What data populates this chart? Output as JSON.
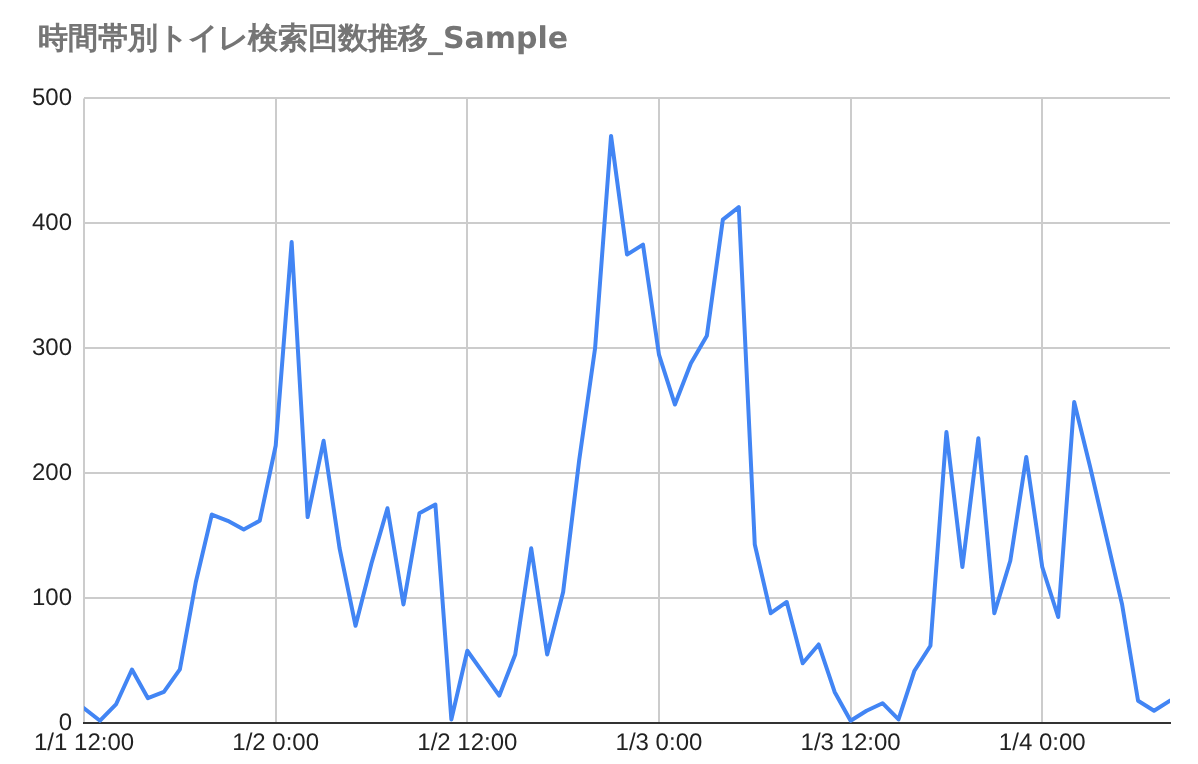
{
  "chart_data": {
    "type": "line",
    "title": "時間帯別トイレ検索回数推移_Sample",
    "x": [
      "--01-01T12:00",
      "--01-01T13:00",
      "--01-01T14:00",
      "--01-01T15:00",
      "--01-01T16:00",
      "--01-01T17:00",
      "--01-01T18:00",
      "--01-01T19:00",
      "--01-01T20:00",
      "--01-01T21:00",
      "--01-01T22:00",
      "--01-01T23:00",
      "--01-02T00:00",
      "--01-02T01:00",
      "--01-02T02:00",
      "--01-02T03:00",
      "--01-02T04:00",
      "--01-02T05:00",
      "--01-02T06:00",
      "--01-02T07:00",
      "--01-02T08:00",
      "--01-02T09:00",
      "--01-02T10:00",
      "--01-02T11:00",
      "--01-02T12:00",
      "--01-02T13:00",
      "--01-02T14:00",
      "--01-02T15:00",
      "--01-02T16:00",
      "--01-02T17:00",
      "--01-02T18:00",
      "--01-02T19:00",
      "--01-02T20:00",
      "--01-02T21:00",
      "--01-02T22:00",
      "--01-02T23:00",
      "--01-03T00:00",
      "--01-03T01:00",
      "--01-03T02:00",
      "--01-03T03:00",
      "--01-03T04:00",
      "--01-03T05:00",
      "--01-03T06:00",
      "--01-03T07:00",
      "--01-03T08:00",
      "--01-03T09:00",
      "--01-03T10:00",
      "--01-03T11:00",
      "--01-03T12:00",
      "--01-03T13:00",
      "--01-03T14:00",
      "--01-03T15:00",
      "--01-03T16:00",
      "--01-03T17:00",
      "--01-03T18:00",
      "--01-03T19:00",
      "--01-03T20:00",
      "--01-03T21:00",
      "--01-03T22:00",
      "--01-03T23:00",
      "--01-04T00:00",
      "--01-04T01:00",
      "--01-04T02:00",
      "--01-04T03:00",
      "--01-04T04:00",
      "--01-04T05:00",
      "--01-04T06:00",
      "--01-04T07:00",
      "--01-04T08:00"
    ],
    "series": [
      {
        "color": "#4285f4",
        "values": [
          12,
          2,
          15,
          43,
          20,
          25,
          43,
          113,
          167,
          162,
          155,
          162,
          222,
          385,
          165,
          226,
          140,
          78,
          128,
          172,
          95,
          168,
          175,
          3,
          58,
          40,
          22,
          55,
          140,
          55,
          105,
          210,
          300,
          470,
          375,
          383,
          295,
          255,
          288,
          310,
          403,
          413,
          143,
          88,
          97,
          48,
          63,
          25,
          2,
          10,
          16,
          3,
          42,
          62,
          233,
          125,
          228,
          88,
          130,
          213,
          125,
          85,
          257,
          205,
          150,
          95,
          18,
          10,
          18
        ]
      }
    ],
    "xlim": [
      "--01-01T12:00",
      "--01-04T08:00"
    ],
    "xticks": [
      {
        "value": "--01-01T12:00",
        "label": "1/1 12:00"
      },
      {
        "value": "--01-02T00:00",
        "label": "1/2 0:00"
      },
      {
        "value": "--01-02T12:00",
        "label": "1/2 12:00"
      },
      {
        "value": "--01-03T00:00",
        "label": "1/3 0:00"
      },
      {
        "value": "--01-03T12:00",
        "label": "1/3 12:00"
      },
      {
        "value": "--01-04T00:00",
        "label": "1/4 0:00"
      }
    ],
    "ylim": [
      0,
      500
    ],
    "yticks": [
      0,
      100,
      200,
      300,
      400,
      500
    ],
    "grid": true,
    "legend": false,
    "marker": "none",
    "line_style": "solid"
  }
}
